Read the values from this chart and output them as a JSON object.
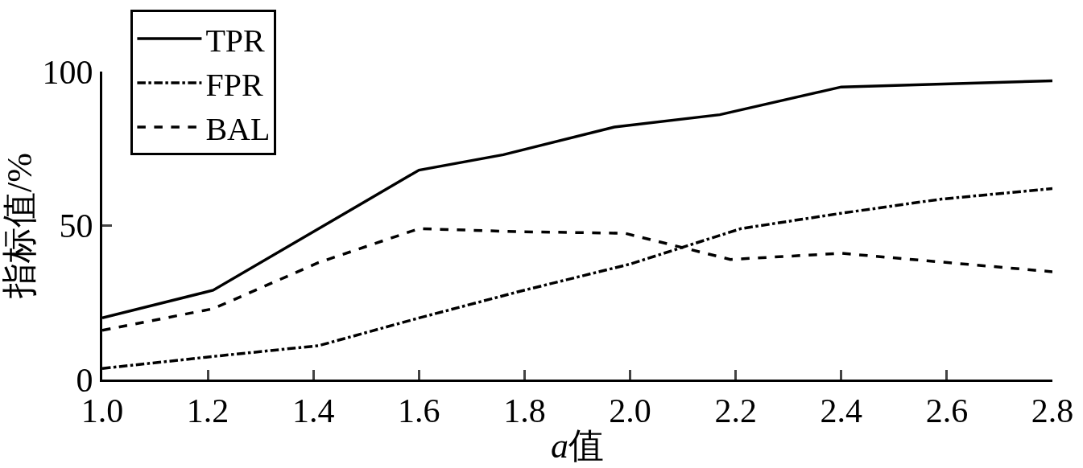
{
  "chart_data": {
    "type": "line",
    "xlabel": "a值",
    "ylabel": "指标值/%",
    "series": [
      {
        "name": "TPR",
        "color": "#000000",
        "line_style": "solid",
        "x": [
          1.0,
          1.21,
          1.6,
          1.76,
          1.97,
          2.17,
          2.4,
          2.8
        ],
        "values": [
          20,
          29,
          68,
          73,
          82,
          86,
          95,
          97
        ]
      },
      {
        "name": "FPR",
        "color": "#000000",
        "line_style": "dashdot",
        "x": [
          1.0,
          1.21,
          1.41,
          1.6,
          1.79,
          2.0,
          2.21,
          2.4,
          2.59,
          2.8
        ],
        "values": [
          3.6,
          7.5,
          11,
          20,
          28.6,
          37.5,
          49,
          54,
          58.6,
          62
        ]
      },
      {
        "name": "BAL",
        "color": "#000000",
        "line_style": "dashed",
        "x": [
          1.0,
          1.21,
          1.41,
          1.6,
          1.79,
          1.99,
          2.19,
          2.4,
          2.8
        ],
        "values": [
          16,
          23,
          38,
          49,
          48,
          47.5,
          39,
          41,
          35
        ]
      }
    ],
    "xlim": [
      1.0,
      2.8
    ],
    "xticks": [
      {
        "value": 1.0,
        "label": "1.0"
      },
      1.2,
      1.4,
      1.6,
      1.8,
      {
        "value": 2.0,
        "label": "2.0"
      },
      2.2,
      2.4,
      2.6,
      2.8
    ],
    "ylim": [
      0,
      100
    ],
    "yticks": [
      0,
      50,
      100
    ],
    "legend": "top left",
    "marker": "none"
  }
}
